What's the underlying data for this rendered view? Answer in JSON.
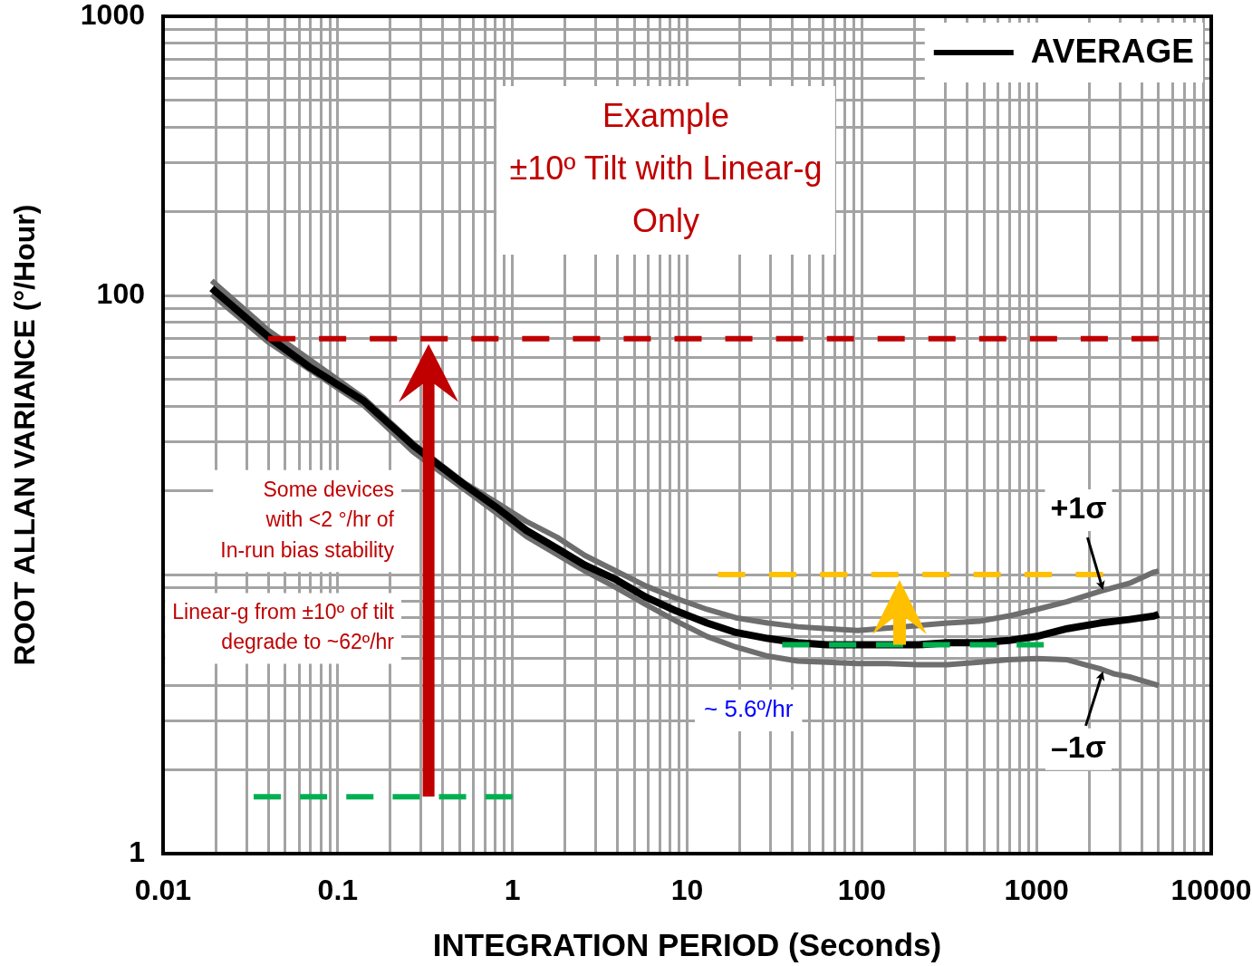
{
  "chart_data": {
    "type": "line",
    "xlabel": "INTEGRATION PERIOD (Seconds)",
    "ylabel": "ROOT ALLAN VARIANCE (°/Hour)",
    "log": "xy",
    "grid": true,
    "legend": "top right",
    "xlim": [
      0.01,
      10000
    ],
    "ylim": [
      1,
      1000
    ],
    "xticks": [
      0.01,
      {
        "value": 0.02,
        "label": null
      },
      {
        "value": 0.03,
        "label": null
      },
      {
        "value": 0.04,
        "label": null
      },
      {
        "value": 0.05,
        "label": null
      },
      {
        "value": 0.06,
        "label": null
      },
      {
        "value": 0.07,
        "label": null
      },
      {
        "value": 0.08,
        "label": null
      },
      {
        "value": 0.09,
        "label": null
      },
      0.1,
      {
        "value": 0.2,
        "label": null
      },
      {
        "value": 0.3,
        "label": null
      },
      {
        "value": 0.4,
        "label": null
      },
      {
        "value": 0.5,
        "label": null
      },
      {
        "value": 0.6,
        "label": null
      },
      {
        "value": 0.7,
        "label": null
      },
      {
        "value": 0.8,
        "label": null
      },
      {
        "value": 0.9,
        "label": null
      },
      1,
      {
        "value": 2,
        "label": null
      },
      {
        "value": 3,
        "label": null
      },
      {
        "value": 4,
        "label": null
      },
      {
        "value": 5,
        "label": null
      },
      {
        "value": 6,
        "label": null
      },
      {
        "value": 7,
        "label": null
      },
      {
        "value": 8,
        "label": null
      },
      {
        "value": 9,
        "label": null
      },
      10,
      {
        "value": 20,
        "label": null
      },
      {
        "value": 30,
        "label": null
      },
      {
        "value": 40,
        "label": null
      },
      {
        "value": 50,
        "label": null
      },
      {
        "value": 60,
        "label": null
      },
      {
        "value": 70,
        "label": null
      },
      {
        "value": 80,
        "label": null
      },
      {
        "value": 90,
        "label": null
      },
      100,
      {
        "value": 200,
        "label": null
      },
      {
        "value": 300,
        "label": null
      },
      {
        "value": 400,
        "label": null
      },
      {
        "value": 500,
        "label": null
      },
      {
        "value": 600,
        "label": null
      },
      {
        "value": 700,
        "label": null
      },
      {
        "value": 800,
        "label": null
      },
      {
        "value": 900,
        "label": null
      },
      1000,
      {
        "value": 2000,
        "label": null
      },
      {
        "value": 3000,
        "label": null
      },
      {
        "value": 4000,
        "label": null
      },
      {
        "value": 5000,
        "label": null
      },
      {
        "value": 6000,
        "label": null
      },
      {
        "value": 7000,
        "label": null
      },
      {
        "value": 8000,
        "label": null
      },
      {
        "value": 9000,
        "label": null
      },
      10000
    ],
    "yticks": [
      1,
      {
        "value": 2,
        "label": null
      },
      {
        "value": 3,
        "label": null
      },
      {
        "value": 4,
        "label": null
      },
      {
        "value": 5,
        "label": null
      },
      {
        "value": 6,
        "label": null
      },
      {
        "value": 7,
        "label": null
      },
      {
        "value": 8,
        "label": null
      },
      {
        "value": 9,
        "label": null
      },
      {
        "value": 10,
        "label": null
      },
      {
        "value": 20,
        "label": null
      },
      {
        "value": 30,
        "label": null
      },
      {
        "value": 40,
        "label": null
      },
      {
        "value": 50,
        "label": null
      },
      {
        "value": 60,
        "label": null
      },
      {
        "value": 70,
        "label": null
      },
      {
        "value": 80,
        "label": null
      },
      {
        "value": 90,
        "label": null
      },
      100,
      {
        "value": 200,
        "label": null
      },
      {
        "value": 300,
        "label": null
      },
      {
        "value": 400,
        "label": null
      },
      {
        "value": 500,
        "label": null
      },
      {
        "value": 600,
        "label": null
      },
      {
        "value": 700,
        "label": null
      },
      {
        "value": 800,
        "label": null
      },
      {
        "value": 900,
        "label": null
      },
      1000
    ],
    "series": [
      {
        "name": "AVERAGE",
        "color": "#000000",
        "x": [
          0.019,
          0.04,
          0.07,
          0.14,
          0.27,
          0.53,
          0.8,
          1.2,
          1.8,
          2.6,
          3.9,
          5.8,
          8.7,
          13,
          19,
          29,
          43,
          63,
          95,
          140,
          210,
          310,
          470,
          690,
          1000,
          1500,
          2300,
          3400,
          4700,
          5000
        ],
        "values": [
          106,
          71,
          55,
          42,
          29,
          21,
          17.5,
          14.4,
          12.4,
          10.8,
          9.6,
          8.3,
          7.4,
          6.7,
          6.2,
          5.9,
          5.7,
          5.6,
          5.6,
          5.6,
          5.6,
          5.7,
          5.7,
          5.8,
          6.0,
          6.4,
          6.7,
          6.9,
          7.1,
          7.2
        ]
      },
      {
        "color": "#6e6e6e",
        "x": [
          0.019,
          0.04,
          0.14,
          0.27,
          0.53,
          0.8,
          1.2,
          1.8,
          2.6,
          3.9,
          5.8,
          8.7,
          13,
          19,
          29,
          43,
          63,
          95,
          310,
          470,
          690,
          1000,
          1500,
          2300,
          3400,
          4700,
          5000
        ],
        "values": [
          113,
          75,
          43,
          29.5,
          21.3,
          18.2,
          15.5,
          13.6,
          11.7,
          10.3,
          9.1,
          8.2,
          7.5,
          7.0,
          6.7,
          6.5,
          6.4,
          6.3,
          6.7,
          6.8,
          7.1,
          7.5,
          8.0,
          8.7,
          9.3,
          10.2,
          10.3
        ]
      },
      {
        "color": "#6e6e6e",
        "x": [
          0.019,
          0.04,
          0.14,
          0.27,
          0.53,
          0.8,
          1.2,
          1.8,
          2.6,
          3.9,
          5.8,
          8.7,
          13,
          19,
          29,
          43,
          63,
          95,
          140,
          210,
          310,
          470,
          690,
          1000,
          1500,
          1900,
          2300,
          2800,
          3400,
          4700,
          5000
        ],
        "values": [
          101,
          68,
          40.5,
          27.5,
          20.2,
          16.7,
          13.7,
          11.8,
          10.3,
          9.0,
          7.8,
          6.8,
          6.0,
          5.5,
          5.1,
          4.9,
          4.85,
          4.8,
          4.8,
          4.75,
          4.75,
          4.85,
          4.95,
          5.0,
          4.95,
          4.75,
          4.6,
          4.4,
          4.3,
          4.05,
          4.0
        ]
      },
      {
        "color": "#c00000",
        "line_style": "dashed",
        "x": [
          0.04,
          5000
        ],
        "values": [
          70,
          70
        ]
      },
      {
        "color": "#ffc000",
        "line_style": "dashed",
        "x": [
          15,
          2400
        ],
        "values": [
          10,
          10
        ]
      },
      {
        "color": "#00b050",
        "line_style": "dashed",
        "x": [
          35,
          1100
        ],
        "values": [
          5.6,
          5.6
        ]
      },
      {
        "color": "#00b050",
        "line_style": "dashed",
        "x": [
          0.033,
          1
        ],
        "values": [
          1.6,
          1.6
        ]
      }
    ],
    "annotations": [
      "Example\n±10º Tilt with Linear-g\nOnly",
      "Some devices\nwith <2 °/hr of\nIn-run bias stability",
      "Linear-g from ±10º of tilt\ndegrade to ~62º/hr",
      "~ 5.6º/hr",
      {
        "text": "+1σ",
        "x": 2400,
        "y": 8.8
      },
      {
        "text": "–1σ",
        "x": 2400,
        "y": 4.5
      }
    ]
  }
}
